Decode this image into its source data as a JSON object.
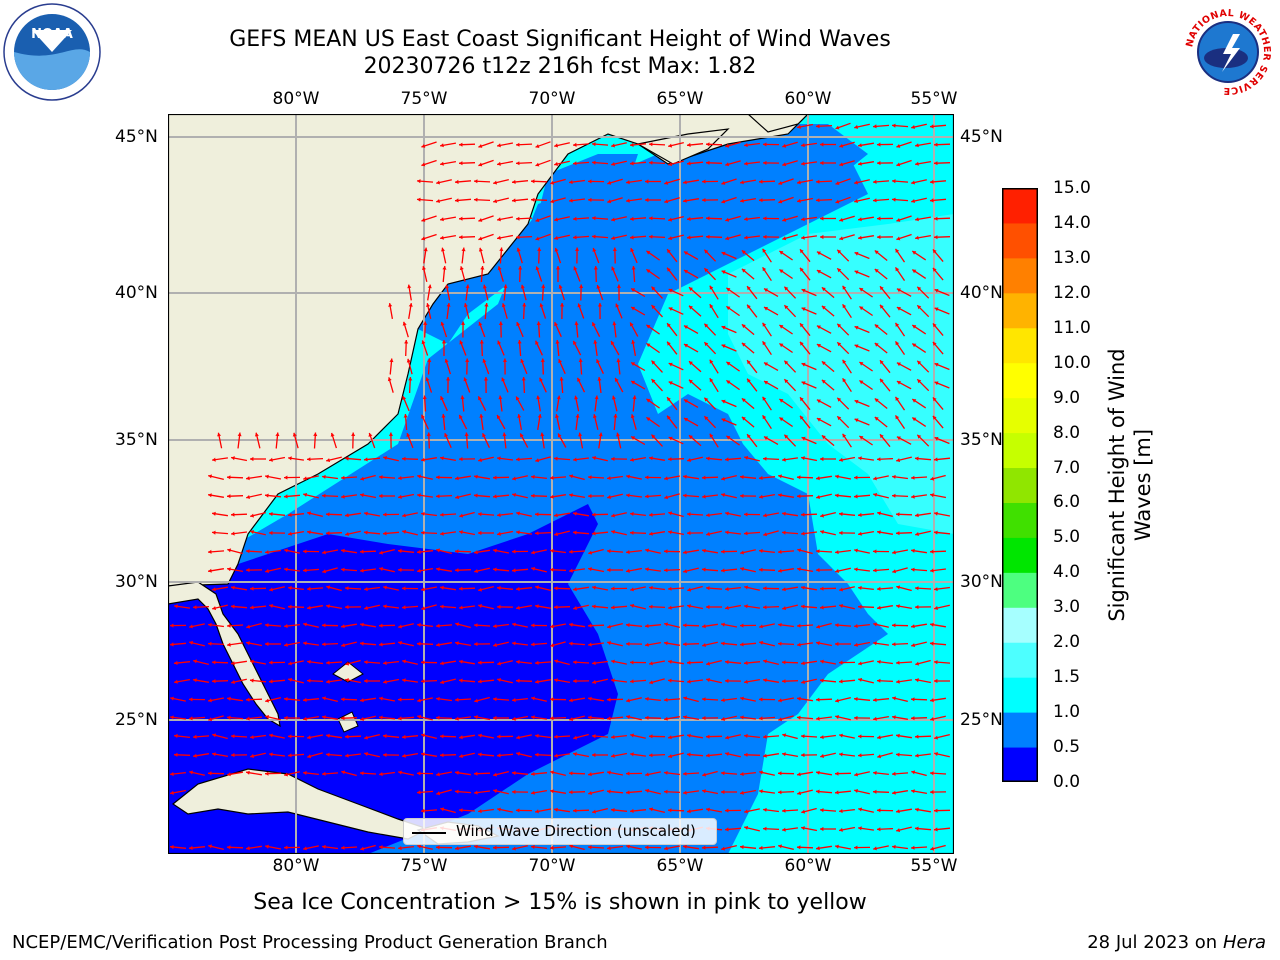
{
  "title_line1": "GEFS MEAN US East Coast Significant Height of Wind Waves",
  "title_line2": "20230726 t12z 216h fcst   Max: 1.82",
  "lon_labels": [
    "80°W",
    "75°W",
    "70°W",
    "65°W",
    "60°W",
    "55°W"
  ],
  "lat_labels": [
    "45°N",
    "40°N",
    "35°N",
    "30°N",
    "25°N"
  ],
  "colorbar": {
    "label_line1": "Significant Height of Wind",
    "label_line2": "Waves [m]",
    "ticks": [
      "0.0",
      "0.5",
      "1.0",
      "1.5",
      "2.0",
      "3.0",
      "4.0",
      "5.0",
      "6.0",
      "7.0",
      "8.0",
      "9.0",
      "10.0",
      "11.0",
      "12.0",
      "13.0",
      "14.0",
      "15.0"
    ],
    "colors": [
      "#0000ff",
      "#0080ff",
      "#00ffff",
      "#4dffff",
      "#a6ffff",
      "#4dff80",
      "#00e600",
      "#40e000",
      "#90e600",
      "#c6ff00",
      "#e6ff00",
      "#ffff00",
      "#ffe600",
      "#ffb300",
      "#ff8000",
      "#ff5000",
      "#ff2000"
    ]
  },
  "legend_label": "Wind Wave Direction (unscaled)",
  "footnote": "Sea Ice Concentration > 15% is shown in pink to yellow",
  "credit_left": "NCEP/EMC/Verification Post Processing Product Generation Branch",
  "credit_date": "28 Jul 2023 on",
  "credit_machine": "Hera",
  "logos": {
    "left": "NOAA",
    "right_text": "NATIONAL WEATHER SERVICE"
  },
  "map_colors": {
    "land": "#efefdc",
    "grid": "#b0b0b0",
    "arrows": "#ff0000"
  }
}
